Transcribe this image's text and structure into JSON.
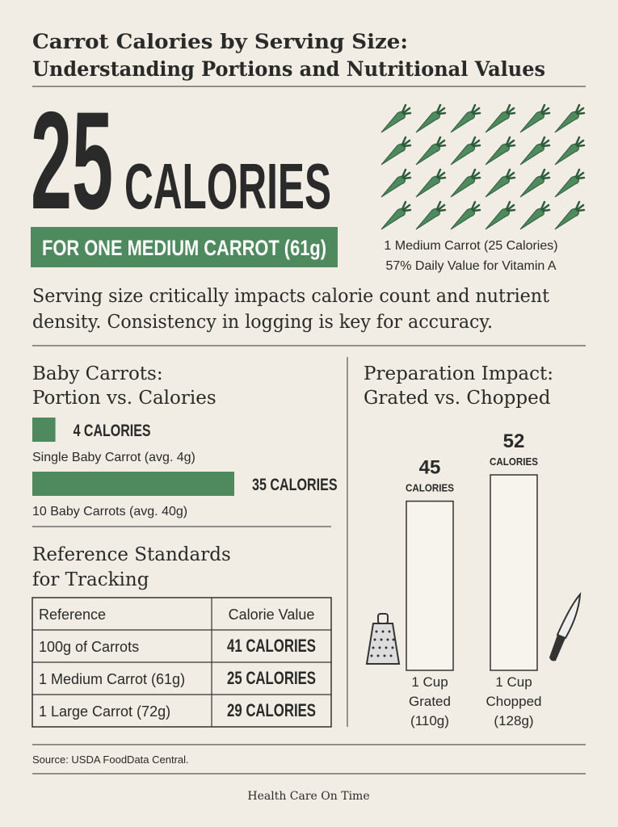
{
  "header": {
    "title": [
      "Carrot Calories by Serving Size:",
      "Understanding Portions and Nutritional Values"
    ]
  },
  "hero": {
    "number": "25",
    "unit": "CALORIES",
    "badge": "FOR ONE MEDIUM CARROT (61g)",
    "icon_caption": [
      "1 Medium Carrot (25 Calories)",
      "57% Daily Value for Vitamin A"
    ]
  },
  "intro": [
    "Serving size critically impacts calorie count and nutrient",
    "density. Consistency in logging is key for accuracy."
  ],
  "baby_carrots": {
    "type": "bar",
    "title": [
      "Baby Carrots:",
      "Portion vs. Calories"
    ],
    "color": "#4e8a5e",
    "values": [
      4,
      35
    ],
    "value_labels": [
      "4 CALORIES",
      "35 CALORIES"
    ],
    "categories": [
      "Single Baby Carrot (avg. 4g)",
      "10 Baby Carrots (avg. 40g)"
    ]
  },
  "reference": {
    "title": [
      "Reference Standards",
      "for Tracking"
    ],
    "columns": [
      "Reference",
      "Calorie Value"
    ],
    "rows": [
      [
        "100g of Carrots",
        "41 CALORIES"
      ],
      [
        "1 Medium Carrot (61g)",
        "25 CALORIES"
      ],
      [
        "1 Large Carrot (72g)",
        "29 CALORIES"
      ]
    ]
  },
  "preparation": {
    "type": "bar",
    "title": [
      "Preparation Impact:",
      "Grated vs. Chopped"
    ],
    "unit": "CALORIES",
    "values": [
      45,
      52
    ],
    "categories": [
      [
        "1 Cup",
        "Grated",
        "(110g)"
      ],
      [
        "1 Cup",
        "Chopped",
        "(128g)"
      ]
    ]
  },
  "footer": {
    "source": "Source: USDA FoodData Central.",
    "brand": "Health Care On Time"
  }
}
